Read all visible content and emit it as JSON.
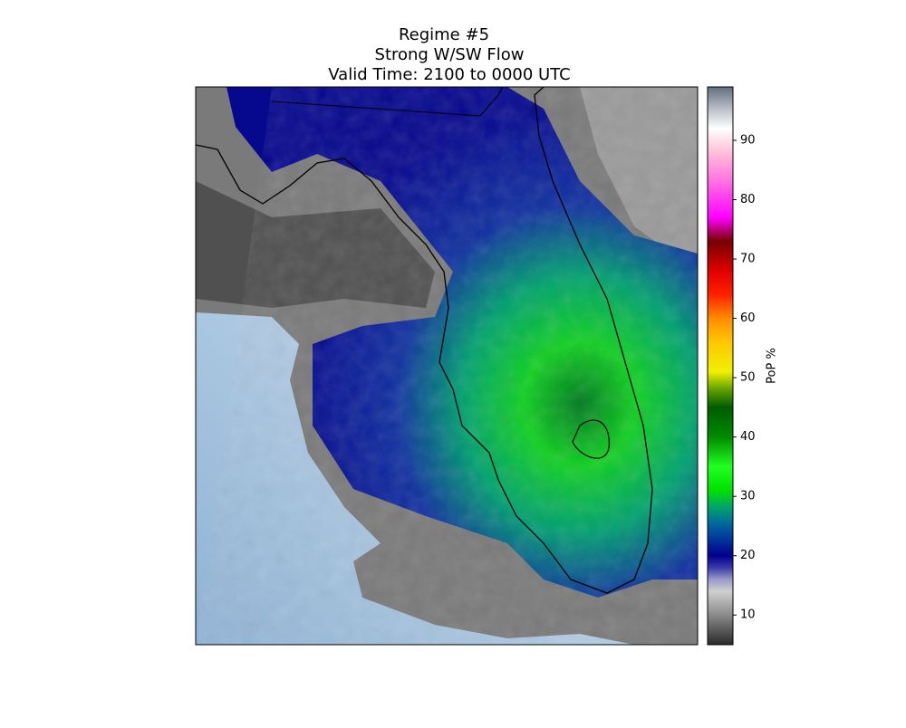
{
  "chart_data": {
    "type": "map",
    "title": [
      "Regime #5",
      "Strong W/SW Flow",
      "Valid Time: 2100 to 0000 UTC"
    ],
    "colorbar": {
      "label": "PoP %",
      "lim": [
        5,
        99
      ],
      "ticks": [
        10,
        20,
        30,
        40,
        50,
        60,
        70,
        80,
        90
      ],
      "colors": [
        {
          "value": 5,
          "color": "#2a2a2a"
        },
        {
          "value": 10,
          "color": "#8a8a8a"
        },
        {
          "value": 14,
          "color": "#cfcfcf"
        },
        {
          "value": 16,
          "color": "#9a9ac8"
        },
        {
          "value": 18,
          "color": "#3a3aa8"
        },
        {
          "value": 20,
          "color": "#00008e"
        },
        {
          "value": 25,
          "color": "#0060a0"
        },
        {
          "value": 28,
          "color": "#00a070"
        },
        {
          "value": 31,
          "color": "#00e000"
        },
        {
          "value": 35,
          "color": "#20ff20"
        },
        {
          "value": 40,
          "color": "#008a00"
        },
        {
          "value": 45,
          "color": "#005c00"
        },
        {
          "value": 48,
          "color": "#60a000"
        },
        {
          "value": 51,
          "color": "#f0f000"
        },
        {
          "value": 56,
          "color": "#ffc800"
        },
        {
          "value": 60,
          "color": "#ff8c00"
        },
        {
          "value": 64,
          "color": "#ff2000"
        },
        {
          "value": 68,
          "color": "#e00000"
        },
        {
          "value": 73,
          "color": "#780000"
        },
        {
          "value": 77,
          "color": "#ff00ff"
        },
        {
          "value": 83,
          "color": "#ff70e0"
        },
        {
          "value": 88,
          "color": "#ffc0d8"
        },
        {
          "value": 92,
          "color": "#ffffff"
        },
        {
          "value": 95,
          "color": "#c0c4cc"
        },
        {
          "value": 99,
          "color": "#607080"
        }
      ]
    }
  }
}
